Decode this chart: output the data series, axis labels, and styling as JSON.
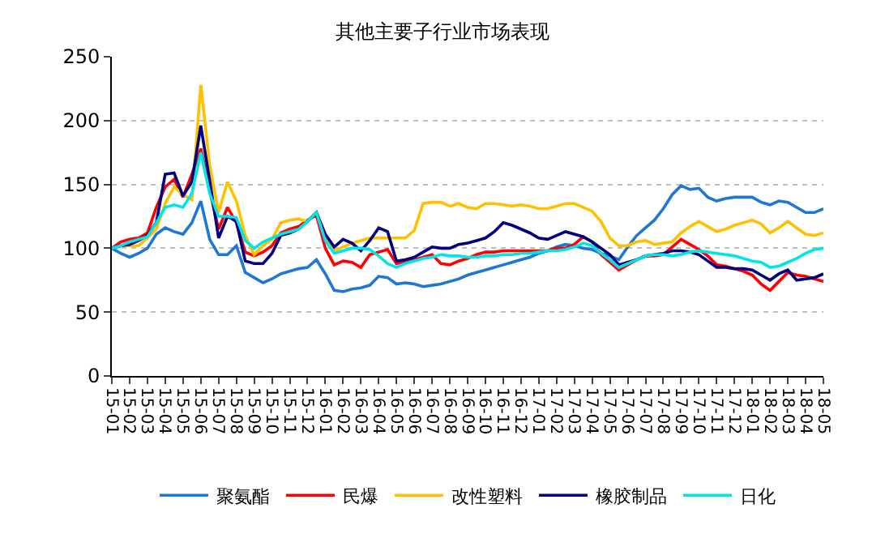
{
  "chart_data": {
    "type": "line",
    "title": "其他主要子行业市场表现",
    "categories": [
      "15-01",
      null,
      "15-02",
      null,
      "15-03",
      null,
      "15-04",
      null,
      "15-05",
      null,
      "15-06",
      null,
      "15-07",
      null,
      "15-08",
      null,
      "15-09",
      null,
      "15-10",
      null,
      "15-11",
      null,
      "15-12",
      null,
      "16-01",
      null,
      "16-02",
      null,
      "16-03",
      null,
      "16-04",
      null,
      "16-05",
      null,
      "16-06",
      null,
      "16-07",
      null,
      "16-08",
      null,
      "16-09",
      null,
      "16-10",
      null,
      "16-11",
      null,
      "16-12",
      null,
      "17-01",
      null,
      "17-02",
      null,
      "17-03",
      null,
      "17-04",
      null,
      "17-05",
      null,
      "17-06",
      null,
      "17-07",
      null,
      "17-08",
      null,
      "17-09",
      null,
      "17-10",
      null,
      "17-11",
      null,
      "17-12",
      null,
      "18-01",
      null,
      "18-02",
      null,
      "18-03",
      null,
      "18-04",
      null,
      "18-05"
    ],
    "ylim": [
      0,
      250
    ],
    "yticks": [
      0,
      50,
      100,
      150,
      200,
      250
    ],
    "grid": "y",
    "legend": "bottom",
    "marker": "none",
    "line_style": "solid",
    "series": [
      {
        "name": "聚氨酯",
        "color": "#1f77d4",
        "values": [
          100,
          96,
          93,
          96,
          100,
          111,
          116,
          113,
          111,
          120,
          137,
          107,
          95,
          95,
          102,
          81,
          77,
          73,
          76,
          80,
          82,
          84,
          85,
          91,
          80,
          67,
          66,
          68,
          69,
          71,
          78,
          77,
          72,
          73,
          72,
          70,
          71,
          72,
          74,
          76,
          79,
          81,
          83,
          85,
          87,
          89,
          91,
          93,
          96,
          98,
          101,
          103,
          102,
          100,
          99,
          96,
          94,
          91,
          101,
          110,
          116,
          122,
          131,
          142,
          149,
          146,
          147,
          140,
          137,
          139,
          140,
          140,
          140,
          136,
          134,
          137,
          136,
          132,
          128,
          128,
          131
        ]
      },
      {
        "name": "民爆",
        "color": "#ff0000",
        "values": [
          100,
          105,
          107,
          108,
          112,
          132,
          148,
          154,
          140,
          158,
          178,
          145,
          115,
          132,
          120,
          97,
          94,
          97,
          102,
          112,
          115,
          117,
          122,
          126,
          100,
          87,
          90,
          89,
          85,
          95,
          97,
          99,
          88,
          90,
          91,
          93,
          95,
          88,
          87,
          90,
          92,
          95,
          97,
          97,
          98,
          98,
          98,
          98,
          98,
          98,
          100,
          100,
          103,
          109,
          105,
          95,
          89,
          83,
          87,
          91,
          94,
          94,
          95,
          101,
          107,
          103,
          99,
          94,
          87,
          86,
          84,
          82,
          79,
          72,
          67,
          74,
          81,
          79,
          78,
          76,
          74
        ]
      },
      {
        "name": "改性塑料",
        "color": "#ffc000",
        "values": [
          100,
          102,
          102,
          102,
          108,
          115,
          135,
          148,
          142,
          138,
          228,
          165,
          128,
          152,
          137,
          110,
          95,
          102,
          107,
          120,
          122,
          123,
          121,
          128,
          108,
          98,
          101,
          104,
          106,
          108,
          108,
          108,
          108,
          108,
          114,
          135,
          136,
          136,
          133,
          135,
          132,
          131,
          135,
          135,
          134,
          133,
          134,
          133,
          131,
          131,
          133,
          135,
          135,
          132,
          129,
          121,
          108,
          102,
          102,
          105,
          106,
          103,
          104,
          105,
          112,
          117,
          121,
          117,
          113,
          115,
          118,
          120,
          122,
          119,
          112,
          116,
          121,
          116,
          111,
          110,
          112
        ]
      },
      {
        "name": "橡胶制品",
        "color": "#000080",
        "values": [
          100,
          102,
          103,
          106,
          110,
          120,
          158,
          159,
          141,
          152,
          196,
          153,
          108,
          125,
          121,
          90,
          88,
          88,
          96,
          110,
          112,
          115,
          121,
          128,
          111,
          101,
          107,
          104,
          98,
          106,
          116,
          113,
          90,
          91,
          93,
          97,
          101,
          100,
          100,
          103,
          104,
          106,
          108,
          113,
          120,
          118,
          115,
          112,
          108,
          107,
          110,
          113,
          111,
          109,
          105,
          100,
          95,
          87,
          89,
          91,
          94,
          95,
          96,
          98,
          98,
          97,
          95,
          90,
          85,
          85,
          84,
          84,
          83,
          79,
          75,
          80,
          83,
          75,
          76,
          77,
          80
        ]
      },
      {
        "name": "日化",
        "color": "#00e5e5",
        "values": [
          100,
          102,
          105,
          107,
          109,
          120,
          132,
          134,
          132,
          143,
          175,
          143,
          125,
          125,
          124,
          106,
          100,
          105,
          108,
          111,
          113,
          115,
          121,
          128,
          106,
          96,
          98,
          100,
          100,
          99,
          94,
          88,
          85,
          88,
          90,
          92,
          93,
          95,
          94,
          94,
          93,
          93,
          94,
          94,
          95,
          95,
          96,
          96,
          97,
          98,
          98,
          99,
          101,
          104,
          102,
          96,
          91,
          85,
          88,
          91,
          94,
          95,
          95,
          94,
          95,
          97,
          98,
          97,
          96,
          95,
          94,
          92,
          90,
          89,
          85,
          86,
          89,
          92,
          96,
          99,
          100
        ]
      }
    ]
  }
}
